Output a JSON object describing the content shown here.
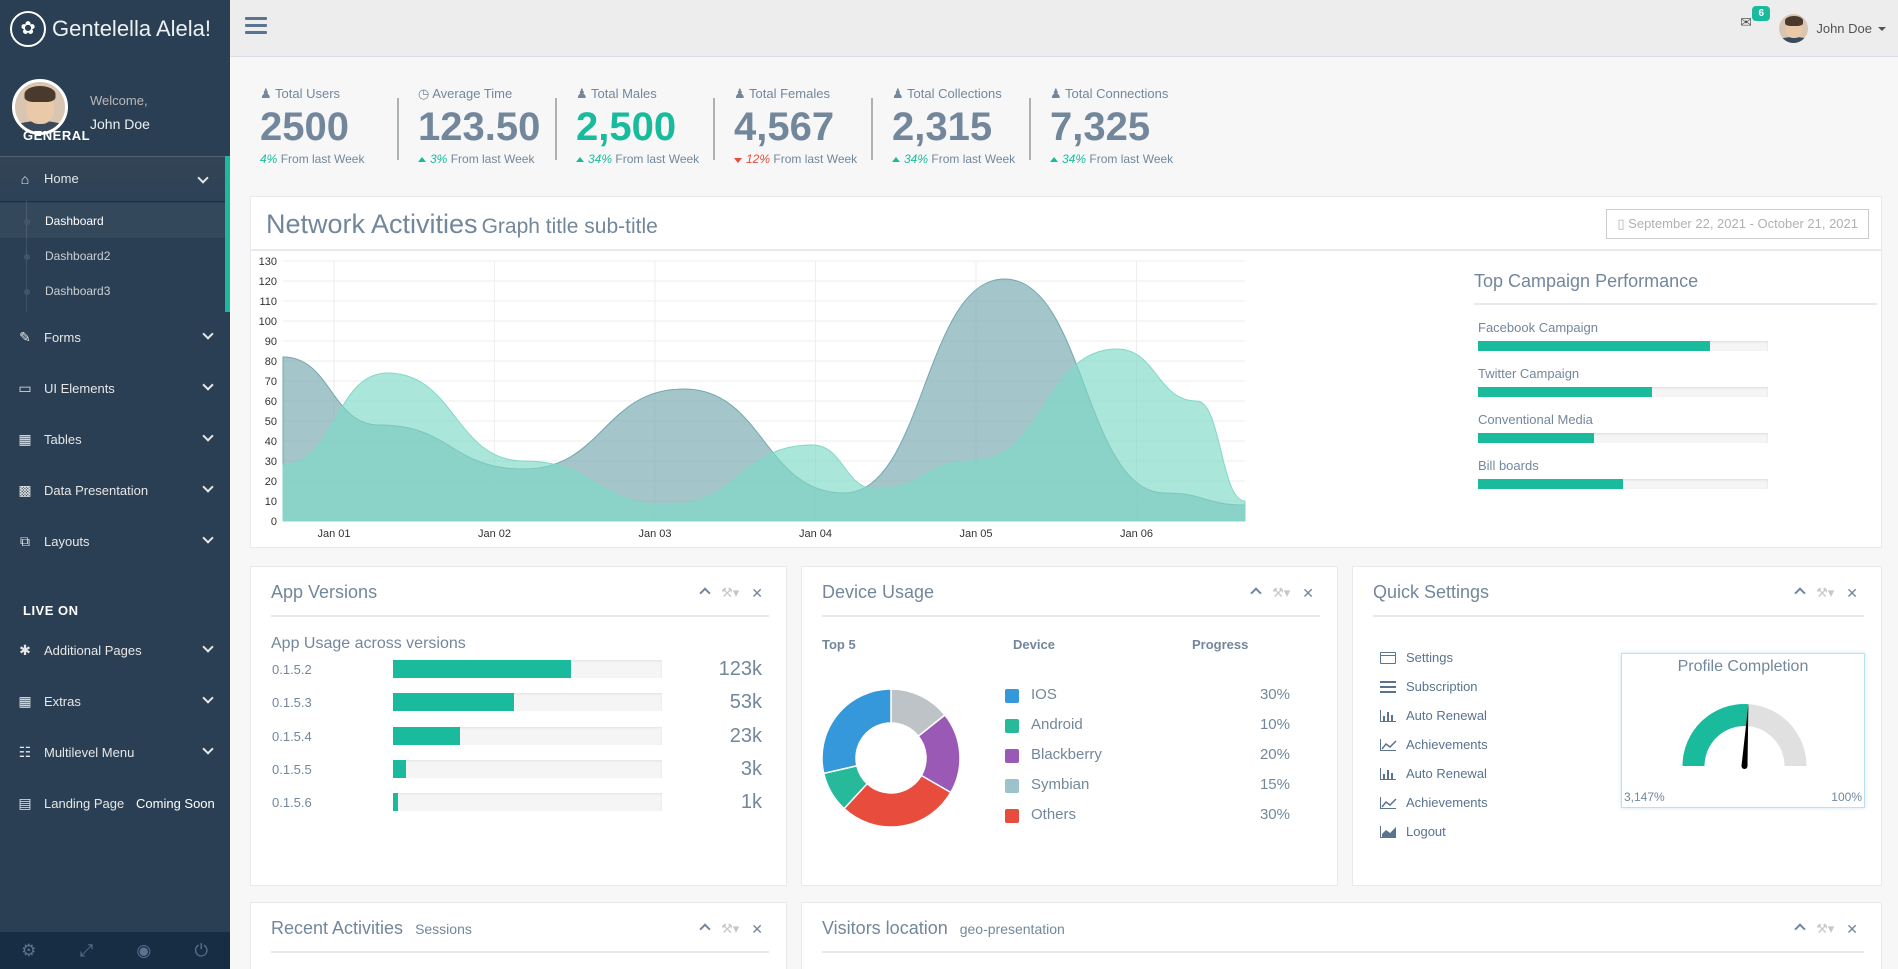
{
  "brand": {
    "name": "Gentelella Alela!",
    "logo_icon": "paw-icon"
  },
  "profile": {
    "welcome": "Welcome,",
    "name": "John Doe"
  },
  "sidebar": {
    "general_title": "GENERAL",
    "home": {
      "label": "Home",
      "icon": "home-icon",
      "submenu": [
        "Dashboard",
        "Dashboard2",
        "Dashboard3"
      ],
      "active": "Dashboard"
    },
    "items": [
      {
        "label": "Forms",
        "icon": "edit-icon"
      },
      {
        "label": "UI Elements",
        "icon": "desktop-icon"
      },
      {
        "label": "Tables",
        "icon": "table-icon"
      },
      {
        "label": "Data Presentation",
        "icon": "bar-chart-icon"
      },
      {
        "label": "Layouts",
        "icon": "clone-icon"
      }
    ],
    "live_title": "LIVE ON",
    "live_items": [
      {
        "label": "Additional Pages",
        "icon": "bug-icon"
      },
      {
        "label": "Extras",
        "icon": "windows-icon"
      },
      {
        "label": "Multilevel Menu",
        "icon": "sitemap-icon"
      }
    ],
    "landing": {
      "label": "Landing Page",
      "badge": "Coming Soon",
      "icon": "laptop-icon"
    },
    "footer_icons": [
      "settings-icon",
      "fullscreen-icon",
      "lock-icon",
      "logout-icon"
    ]
  },
  "topnav": {
    "mail_count": "6",
    "user": "John Doe"
  },
  "tiles": [
    {
      "label": "Total Users",
      "value": "2500",
      "pct": "4%",
      "trend": "none",
      "suffix": "From last Week",
      "highlight": false
    },
    {
      "label": "Average Time",
      "value": "123.50",
      "pct": "3%",
      "trend": "up",
      "suffix": "From last Week",
      "highlight": false
    },
    {
      "label": "Total Males",
      "value": "2,500",
      "pct": "34%",
      "trend": "up",
      "suffix": "From last Week",
      "highlight": true
    },
    {
      "label": "Total Females",
      "value": "4,567",
      "pct": "12%",
      "trend": "down",
      "suffix": "From last Week",
      "highlight": false
    },
    {
      "label": "Total Collections",
      "value": "2,315",
      "pct": "34%",
      "trend": "up",
      "suffix": "From last Week",
      "highlight": false
    },
    {
      "label": "Total Connections",
      "value": "7,325",
      "pct": "34%",
      "trend": "up",
      "suffix": "From last Week",
      "highlight": false
    }
  ],
  "network": {
    "title": "Network Activities",
    "subtitle": "Graph title sub-title",
    "date_range": "September 22, 2021 - October 21, 2021",
    "campaign_title": "Top Campaign Performance",
    "campaigns": [
      {
        "label": "Facebook Campaign",
        "value": 80
      },
      {
        "label": "Twitter Campaign",
        "value": 60
      },
      {
        "label": "Conventional Media",
        "value": 40
      },
      {
        "label": "Bill boards",
        "value": 50
      }
    ]
  },
  "chart_data": {
    "type": "area",
    "x": [
      "Jan 01",
      "Jan 02",
      "Jan 03",
      "Jan 04",
      "Jan 05",
      "Jan 06"
    ],
    "yticks": [
      0,
      10,
      20,
      30,
      40,
      50,
      60,
      70,
      80,
      90,
      100,
      110,
      120,
      130
    ],
    "ylim": [
      0,
      130
    ],
    "grid": true,
    "series": [
      {
        "color": "#73A7AE",
        "points": [
          [
            0,
            82
          ],
          [
            0.6,
            48
          ],
          [
            1.5,
            26
          ],
          [
            2.5,
            66
          ],
          [
            3.5,
            14
          ],
          [
            4.5,
            121
          ],
          [
            5.5,
            14
          ],
          [
            6,
            8
          ]
        ]
      },
      {
        "color": "#7ED9C6",
        "points": [
          [
            0,
            28
          ],
          [
            0.65,
            74
          ],
          [
            1.5,
            30
          ],
          [
            2.4,
            8
          ],
          [
            3.3,
            38
          ],
          [
            3.7,
            16
          ],
          [
            4.3,
            30
          ],
          [
            5.2,
            86
          ],
          [
            5.7,
            60
          ],
          [
            6,
            10
          ]
        ]
      }
    ]
  },
  "app_versions": {
    "title": "App Versions",
    "subtitle": "App Usage across versions",
    "rows": [
      {
        "version": "0.1.5.2",
        "value": 66,
        "count": "123k"
      },
      {
        "version": "0.1.5.3",
        "value": 45,
        "count": "53k"
      },
      {
        "version": "0.1.5.4",
        "value": 25,
        "count": "23k"
      },
      {
        "version": "0.1.5.5",
        "value": 5,
        "count": "3k"
      },
      {
        "version": "0.1.5.6",
        "value": 2,
        "count": "1k"
      }
    ]
  },
  "device_usage": {
    "title": "Device Usage",
    "col_top": "Top 5",
    "col_device": "Device",
    "col_progress": "Progress",
    "rows": [
      {
        "name": "IOS",
        "pct": "30%",
        "color": "#3498DB"
      },
      {
        "name": "Android",
        "pct": "10%",
        "color": "#26B99A"
      },
      {
        "name": "Blackberry",
        "pct": "20%",
        "color": "#9B59B6"
      },
      {
        "name": "Symbian",
        "pct": "15%",
        "color": "#9CC2CB"
      },
      {
        "name": "Others",
        "pct": "30%",
        "color": "#E74C3C"
      }
    ],
    "donut": [
      {
        "label": "Symbian",
        "value": 15,
        "color": "#BDC3C7"
      },
      {
        "label": "Blackberry",
        "value": 20,
        "color": "#9B59B6"
      },
      {
        "label": "Others",
        "value": 30,
        "color": "#E74C3C"
      },
      {
        "label": "Android",
        "value": 10,
        "color": "#26B99A"
      },
      {
        "label": "IOS",
        "value": 30,
        "color": "#3498DB"
      }
    ]
  },
  "quick_settings": {
    "title": "Quick Settings",
    "items": [
      {
        "label": "Settings",
        "icon": "calendar-icon"
      },
      {
        "label": "Subscription",
        "icon": "list-icon"
      },
      {
        "label": "Auto Renewal",
        "icon": "bar-chart-icon"
      },
      {
        "label": "Achievements",
        "icon": "line-chart-icon"
      },
      {
        "label": "Auto Renewal",
        "icon": "bar-chart-icon"
      },
      {
        "label": "Achievements",
        "icon": "line-chart-icon"
      },
      {
        "label": "Logout",
        "icon": "area-chart-icon"
      }
    ],
    "profile_title": "Profile Completion",
    "gauge_min": "3,147%",
    "gauge_max": "100%",
    "gauge_fraction": 0.52
  },
  "recent": {
    "title": "Recent Activities",
    "subtitle": "Sessions"
  },
  "visitors": {
    "title": "Visitors location",
    "subtitle": "geo-presentation"
  }
}
